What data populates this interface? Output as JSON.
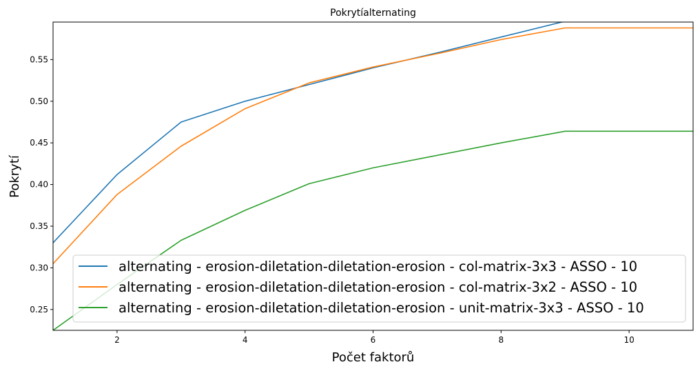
{
  "chart_data": {
    "type": "line",
    "title": "Pokrytíalternating",
    "xlabel": "Počet faktorů",
    "ylabel": "Pokrytí",
    "xlim": [
      1,
      11
    ],
    "ylim": [
      0.225,
      0.595
    ],
    "xticks": [
      2,
      4,
      6,
      8,
      10
    ],
    "yticks": [
      0.25,
      0.3,
      0.35,
      0.4,
      0.45,
      0.5,
      0.55
    ],
    "grid": false,
    "legend_position": "lower-right",
    "x": [
      1,
      2,
      3,
      4,
      5,
      6,
      7,
      8,
      9,
      10,
      11
    ],
    "series": [
      {
        "name": "alternating - erosion-diletation-diletation-erosion - col-matrix-3x3 - ASSO - 10",
        "color": "#1f77b4",
        "values": [
          0.33,
          0.412,
          0.475,
          0.5,
          0.52,
          0.54,
          0.558,
          0.577,
          0.596,
          0.597,
          0.598
        ]
      },
      {
        "name": "alternating - erosion-diletation-diletation-erosion - col-matrix-3x2 - ASSO - 10",
        "color": "#ff7f0e",
        "values": [
          0.305,
          0.388,
          0.446,
          0.491,
          0.522,
          0.541,
          0.557,
          0.574,
          0.588,
          0.588,
          0.588
        ]
      },
      {
        "name": "alternating - erosion-diletation-diletation-erosion - unit-matrix-3x3 - ASSO - 10",
        "color": "#2ca02c",
        "values": [
          0.225,
          0.28,
          0.333,
          0.369,
          0.401,
          0.42,
          0.435,
          0.45,
          0.464,
          0.464,
          0.464
        ]
      }
    ]
  }
}
